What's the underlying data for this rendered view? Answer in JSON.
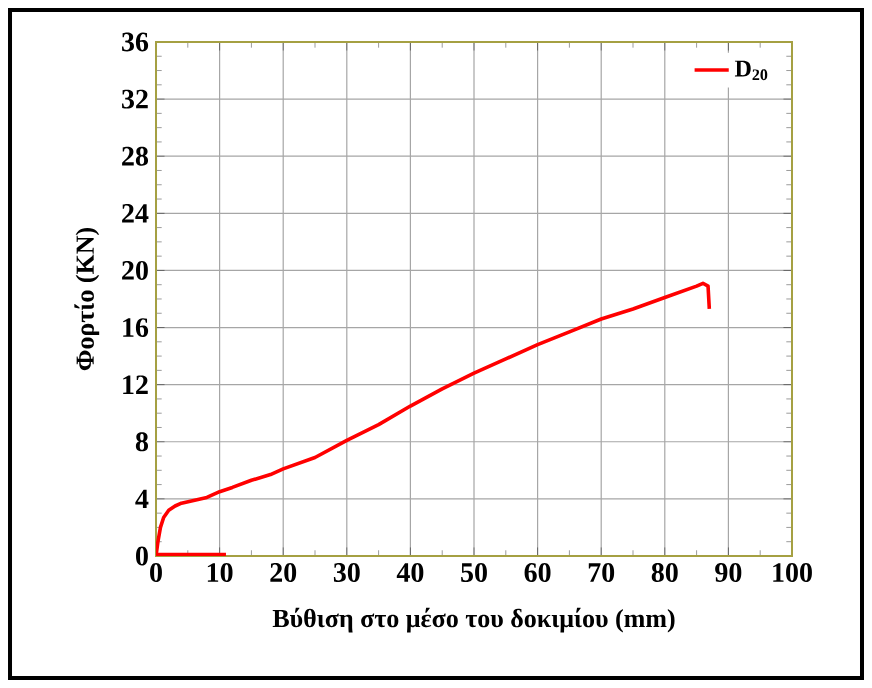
{
  "chart_data": {
    "type": "line",
    "xlabel": "Βύθιση στο μέσο του δοκιμίου (mm)",
    "ylabel": "Φορτίο (KN)",
    "series": [
      {
        "name": "D$_{20}$",
        "color": "#ff0000",
        "x": [
          0,
          0.3,
          0.7,
          1.2,
          2,
          3,
          4,
          5,
          6,
          8,
          10,
          12,
          15,
          18,
          20,
          25,
          30,
          35,
          40,
          45,
          50,
          55,
          60,
          65,
          70,
          75,
          80,
          85,
          86,
          86.8,
          87
        ],
        "values": [
          0,
          1,
          2,
          2.7,
          3.2,
          3.5,
          3.7,
          3.8,
          3.9,
          4.1,
          4.5,
          4.8,
          5.3,
          5.7,
          6.1,
          6.9,
          8.1,
          9.2,
          10.5,
          11.7,
          12.8,
          13.8,
          14.8,
          15.7,
          16.6,
          17.3,
          18.1,
          18.9,
          19.1,
          18.9,
          17.3
        ]
      },
      {
        "color": "#ff0000",
        "x": [
          0,
          11
        ],
        "values": [
          0.1,
          0.1
        ]
      }
    ],
    "xlim": [
      0,
      100
    ],
    "xticks": [
      0,
      10,
      20,
      30,
      40,
      50,
      60,
      70,
      80,
      90,
      100
    ],
    "ylim": [
      0,
      36
    ],
    "yticks": [
      0,
      4,
      8,
      12,
      16,
      20,
      24,
      28,
      32,
      36
    ],
    "grid": true,
    "legend": "top right",
    "line_style": "solid"
  }
}
